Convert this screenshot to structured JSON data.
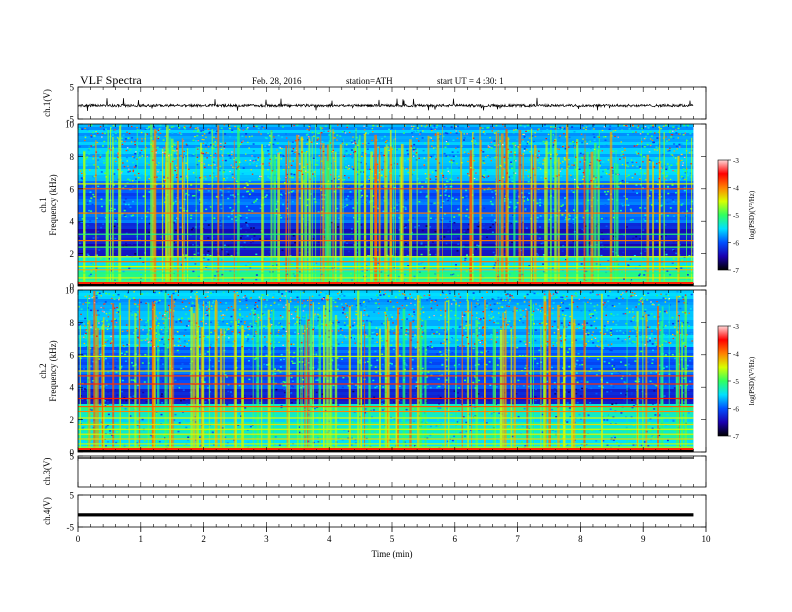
{
  "header": {
    "title": "VLF  Spectra",
    "date": "Feb. 28, 2016",
    "station": "station=ATH",
    "start": "start  UT  =   4  :30: 1"
  },
  "colors": {
    "background": "#ffffff",
    "trace": "#000000",
    "spectrogram_floor": "#000000",
    "colormap": [
      "#000000",
      "#1a00b0",
      "#0050ff",
      "#00e0ff",
      "#30ff60",
      "#d8ff00",
      "#ff8000",
      "#ff0000",
      "#ffd8d8"
    ]
  },
  "chart_data": [
    {
      "id": "ch1_waveform",
      "type": "line",
      "ylabel": "ch.1(V)",
      "x_range": [
        0,
        10
      ],
      "ylim": [
        -5,
        5
      ],
      "y_ticks": [
        "5",
        "-5"
      ],
      "data_end_min": 9.8,
      "baseline_v": -0.8,
      "noise_amplitude_v": 0.4,
      "spike_min_v": -2.6,
      "spike_max_v": 1.6
    },
    {
      "id": "ch1_spectrogram",
      "type": "heatmap",
      "ylabel": "ch.1\nFrequency  (kHz)",
      "x_range": [
        0,
        10
      ],
      "ylim": [
        0,
        10
      ],
      "y_ticks": [
        "0",
        "2",
        "4",
        "6",
        "8",
        "10"
      ],
      "data_end_min": 9.8,
      "colorbar": {
        "label": "log(PSD)(V²/Hz)",
        "range": [
          -7,
          -3
        ],
        "ticks": [
          "-3",
          "-4",
          "-5",
          "-6",
          "-7"
        ]
      },
      "lines_khz": [
        0.3,
        0.5,
        0.8,
        1.0,
        1.2,
        1.5,
        1.8,
        2.4,
        2.8,
        3.2,
        4.5,
        6.0,
        6.3
      ],
      "dark_band_khz": [
        2.0,
        4.0
      ],
      "bursts_extend_to_khz": 10
    },
    {
      "id": "ch2_spectrogram",
      "type": "heatmap",
      "ylabel": "ch.2\nFrequency  (kHz)",
      "x_range": [
        0,
        10
      ],
      "ylim": [
        0,
        10
      ],
      "y_ticks": [
        "0",
        "2",
        "4",
        "6",
        "8",
        "10"
      ],
      "data_end_min": 9.8,
      "colorbar": {
        "label": "log(PSD)(V²/Hz)",
        "range": [
          -7,
          -3
        ],
        "ticks": [
          "-3",
          "-4",
          "-5",
          "-6",
          "-7"
        ]
      },
      "lines_khz": [
        0.3,
        0.5,
        0.8,
        1.1,
        1.4,
        1.7,
        2.1,
        2.5,
        2.8,
        3.3,
        4.2,
        4.7,
        5.0,
        5.9
      ],
      "dark_band_khz": [
        3.0,
        4.0
      ],
      "bursts_extend_to_khz": 10
    },
    {
      "id": "ch3_waveform",
      "type": "line",
      "ylabel": "ch.3(V)",
      "x_range": [
        0,
        10
      ],
      "ylim": [
        -5,
        5
      ],
      "y_ticks": [
        "5"
      ],
      "data_end_min": 9.8,
      "baseline_v": 5
    },
    {
      "id": "ch4_waveform",
      "type": "line",
      "ylabel": "ch.4(V)",
      "x_range": [
        0,
        10
      ],
      "ylim": [
        -5,
        5
      ],
      "y_ticks": [
        "5",
        "-5"
      ],
      "data_end_min": 9.8,
      "baseline_v": -1.2,
      "trace_band_v": 0.5
    }
  ],
  "xaxis": {
    "label": "Time  (min)",
    "range": [
      0,
      10
    ],
    "ticks": [
      "0",
      "1",
      "2",
      "3",
      "4",
      "5",
      "6",
      "7",
      "8",
      "9",
      "10"
    ]
  }
}
